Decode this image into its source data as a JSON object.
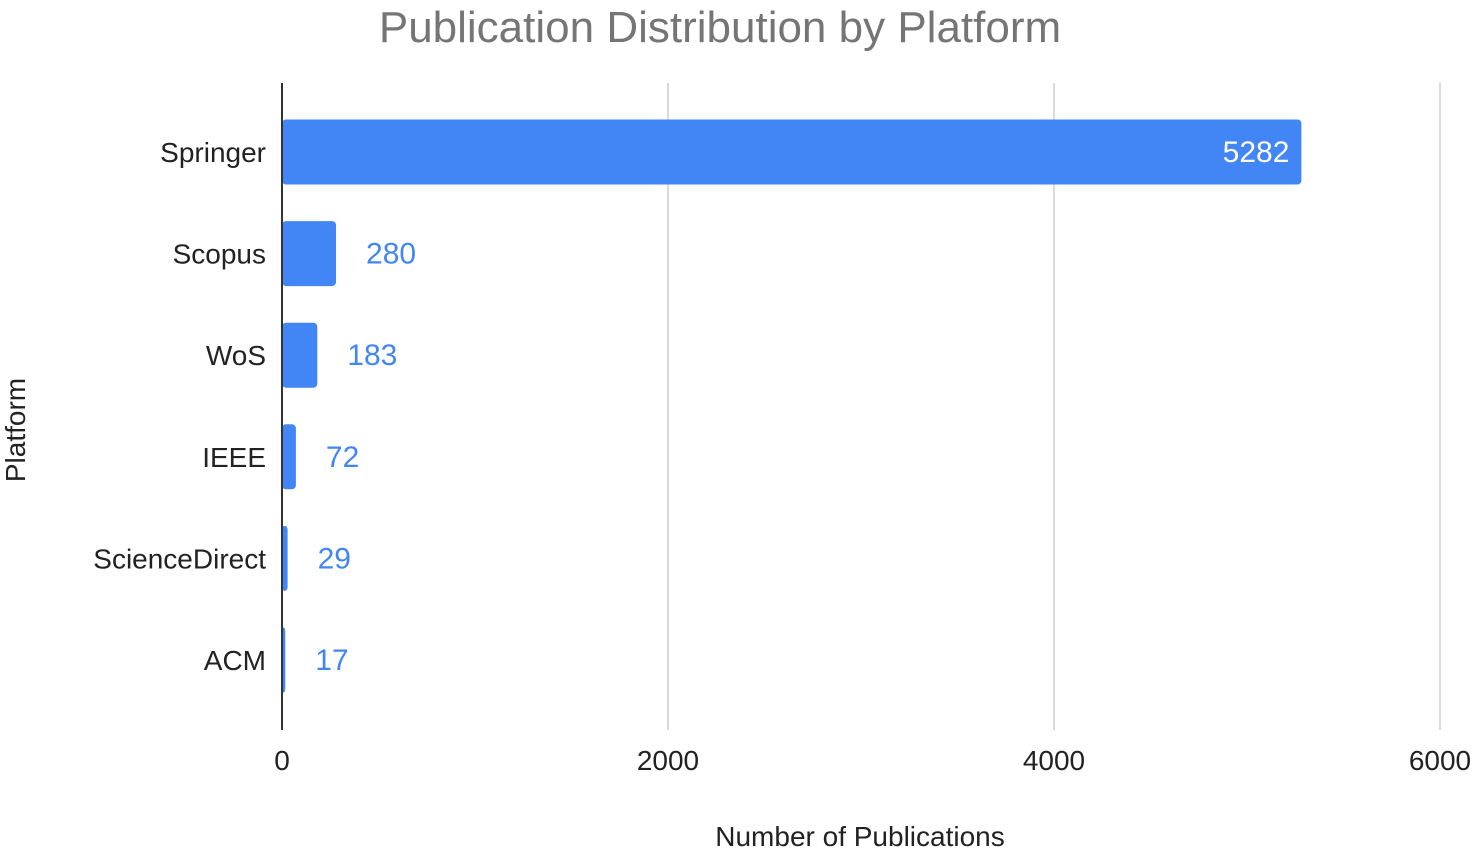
{
  "chart_data": {
    "type": "bar",
    "orientation": "horizontal",
    "title": "Publication Distribution by Platform",
    "xlabel": "Number of Publications",
    "ylabel": "Platform",
    "categories": [
      "Springer",
      "Scopus",
      "WoS",
      "IEEE",
      "ScienceDirect",
      "ACM"
    ],
    "values": [
      5282,
      280,
      183,
      72,
      29,
      17
    ],
    "data_labels": [
      "5282",
      "280",
      "183",
      "72",
      "29",
      "17"
    ],
    "xlim": [
      0,
      6000
    ],
    "xticks": [
      0,
      2000,
      4000,
      6000
    ],
    "xtick_labels": [
      "0",
      "2000",
      "4000",
      "6000"
    ],
    "grid": true,
    "legend": "none",
    "colors": {
      "bar": "#4285f4",
      "label_outside": "#4285f4",
      "label_inside": "#ffffff",
      "grid": "#d9d9d9",
      "axis": "#333333",
      "title": "#757575",
      "text": "#222222"
    }
  }
}
